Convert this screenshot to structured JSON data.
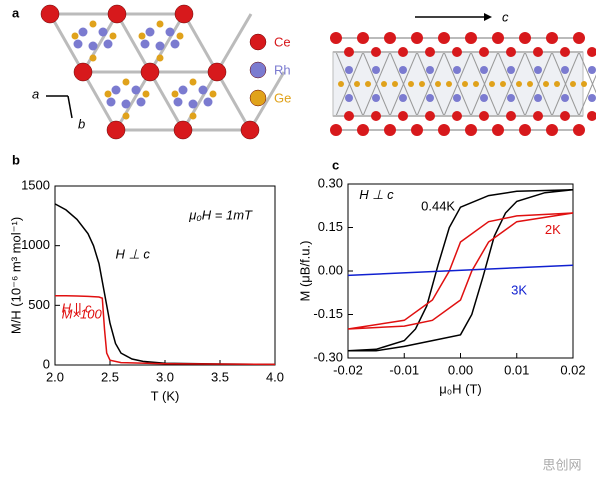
{
  "panel_labels": [
    "a",
    "b",
    "c"
  ],
  "structure": {
    "legend": [
      {
        "name": "Ce",
        "color": "#d7191c"
      },
      {
        "name": "Rh",
        "color": "#7b7bd0"
      },
      {
        "name": "Ge",
        "color": "#e0a21b"
      }
    ],
    "axis_labels": [
      "a",
      "b",
      "c"
    ]
  },
  "watermark": "思创网",
  "chart_data": [
    {
      "type": "line",
      "x_label": "T (K)",
      "y_label": "M/H (10⁻⁶ m³ mol⁻¹)",
      "xlim": [
        2.0,
        4.0
      ],
      "xticks": [
        {
          "value": 2,
          "label": "2.0"
        },
        2.5,
        {
          "value": 3,
          "label": "3.0"
        },
        3.5,
        {
          "value": 4,
          "label": "4.0"
        }
      ],
      "ylim": [
        0,
        1500
      ],
      "yticks": [
        0,
        500,
        1000,
        1500
      ],
      "series": [
        {
          "color": "#000000",
          "x": [
            2.0,
            2.1,
            2.2,
            2.3,
            2.35,
            2.4,
            2.45,
            2.5,
            2.55,
            2.6,
            2.7,
            2.8,
            3.0,
            3.5,
            4.0
          ],
          "values": [
            1350,
            1300,
            1220,
            1100,
            1000,
            850,
            600,
            350,
            180,
            100,
            50,
            30,
            15,
            8,
            5
          ]
        },
        {
          "color": "#e01010",
          "x": [
            2.0,
            2.1,
            2.2,
            2.3,
            2.4,
            2.43,
            2.45,
            2.47,
            2.5,
            2.6,
            3.0,
            4.0
          ],
          "values": [
            580,
            580,
            578,
            575,
            570,
            560,
            300,
            100,
            40,
            20,
            10,
            5
          ]
        }
      ],
      "annotations": [
        {
          "text": "H ⊥ c",
          "color": "#000000"
        },
        {
          "text": "H || c",
          "color": "#e01010"
        },
        {
          "text": "M×100",
          "color": "#e01010"
        },
        {
          "text": "μ₀H = 1mT",
          "color": "#000000"
        }
      ]
    },
    {
      "type": "line",
      "x_label": "μ₀H (T)",
      "y_label": "M (μB/f.u.)",
      "xlim": [
        -0.02,
        0.02
      ],
      "xticks": [
        -0.02,
        -0.01,
        {
          "value": 0,
          "label": "0.00"
        },
        0.01,
        0.02
      ],
      "ylim": [
        -0.3,
        0.3
      ],
      "yticks": [
        {
          "value": -0.3,
          "label": "-0.30"
        },
        -0.15,
        {
          "value": 0,
          "label": "0.00"
        },
        0.15,
        {
          "value": 0.3,
          "label": "0.30"
        }
      ],
      "series": [
        {
          "name": "0.44K",
          "color": "#000000",
          "x": [
            0.02,
            0.01,
            0.005,
            0.0,
            -0.002,
            -0.004,
            -0.006,
            -0.008,
            -0.01,
            -0.015,
            -0.02,
            -0.015,
            -0.01,
            -0.005,
            0.0,
            0.002,
            0.004,
            0.006,
            0.008,
            0.01,
            0.015,
            0.02
          ],
          "values": [
            0.28,
            0.275,
            0.26,
            0.22,
            0.15,
            0.02,
            -0.12,
            -0.2,
            -0.24,
            -0.27,
            -0.275,
            -0.275,
            -0.26,
            -0.24,
            -0.22,
            -0.15,
            -0.02,
            0.12,
            0.2,
            0.24,
            0.27,
            0.28
          ]
        },
        {
          "name": "2K",
          "color": "#e01010",
          "x": [
            0.02,
            0.01,
            0.005,
            0.0,
            -0.002,
            -0.005,
            -0.01,
            -0.02,
            -0.01,
            -0.005,
            0.0,
            0.002,
            0.005,
            0.01,
            0.02
          ],
          "values": [
            0.2,
            0.19,
            0.17,
            0.1,
            0.0,
            -0.1,
            -0.17,
            -0.2,
            -0.19,
            -0.17,
            -0.1,
            0.0,
            0.1,
            0.17,
            0.2
          ]
        },
        {
          "name": "3K",
          "color": "#1020d0",
          "x": [
            -0.02,
            0.02
          ],
          "values": [
            -0.015,
            0.02
          ]
        }
      ],
      "annotations": [
        {
          "text": "H ⊥ c",
          "color": "#000000"
        }
      ]
    }
  ]
}
